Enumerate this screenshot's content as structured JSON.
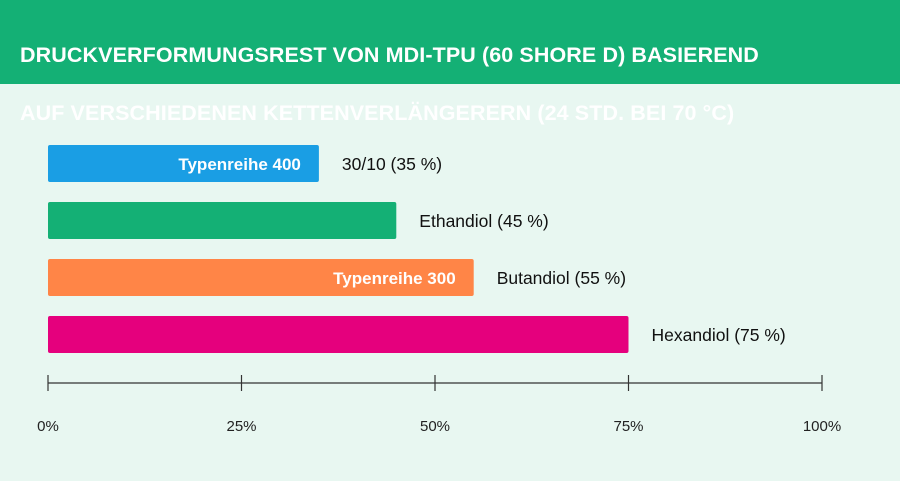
{
  "header": {
    "title_line1": "DRUCKVERFORMUNGSREST VON MDI-TPU (60 SHORE D) BASIEREND",
    "title_line2": "AUF VERSCHIEDENEN KETTENVERLÄNGERERN (24 STD. BEI 70 °C)"
  },
  "colors": {
    "header_bg": "#14b075",
    "page_bg": "#e8f7f1",
    "axis": "#333333"
  },
  "chart_data": {
    "type": "bar",
    "orientation": "horizontal",
    "title": "DRUCKVERFORMUNGSREST VON MDI-TPU (60 SHORE D) BASIEREND AUF VERSCHIEDENEN KETTENVERLÄNGERERN (24 STD. BEI 70 °C)",
    "xlim": [
      0,
      100
    ],
    "x_ticks": [
      0,
      25,
      50,
      75,
      100
    ],
    "x_tick_labels": [
      "0%",
      "25%",
      "50%",
      "75%",
      "100%"
    ],
    "grid": false,
    "bars": [
      {
        "label": "30/10 (35 %)",
        "value": 35,
        "color": "#1a9ee4",
        "inner_label": "Typenreihe 400"
      },
      {
        "label": "Ethandiol (45 %)",
        "value": 45,
        "color": "#14b075",
        "inner_label": ""
      },
      {
        "label": "Butandiol (55 %)",
        "value": 55,
        "color": "#ff8547",
        "inner_label": "Typenreihe 300"
      },
      {
        "label": "Hexandiol (75 %)",
        "value": 75,
        "color": "#e5007d",
        "inner_label": ""
      }
    ]
  }
}
